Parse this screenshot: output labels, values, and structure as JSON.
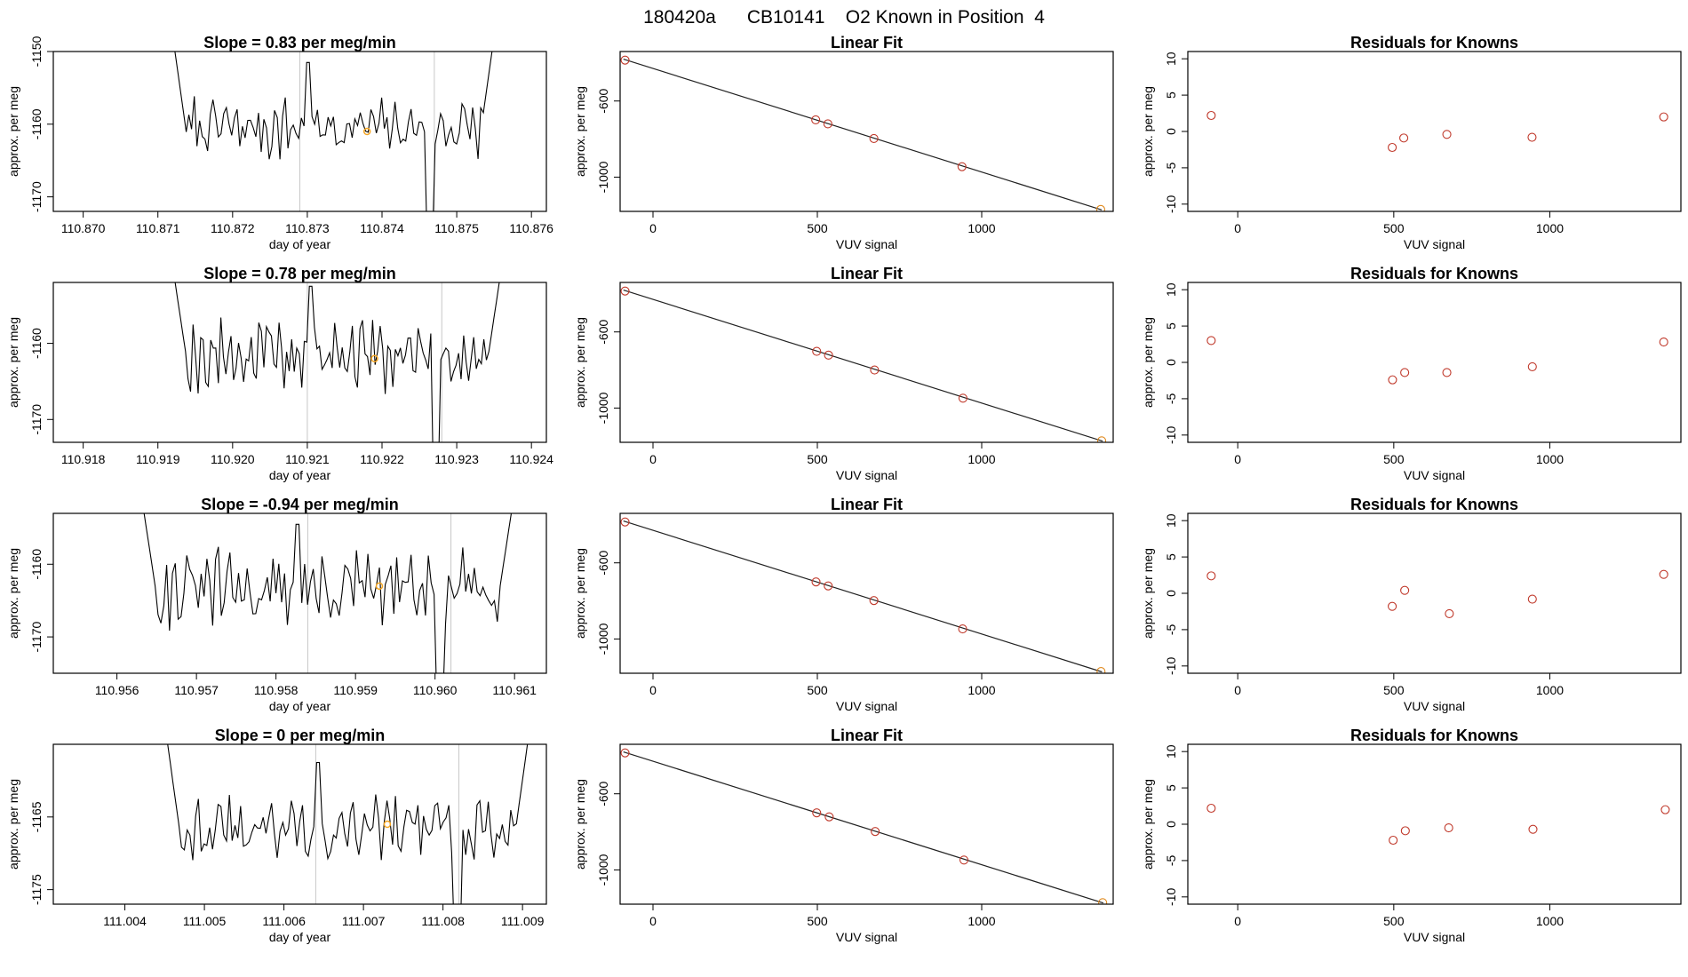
{
  "page_title": "180420a      CB10141    O2 Known in Position  4",
  "chart_data": [
    {
      "type": "line",
      "panel": "timeseries",
      "row": 0,
      "title": "Slope =  0.83  per meg/min",
      "xlabel": "day of year",
      "ylabel": "approx. per meg",
      "xlim": [
        110.8696,
        110.8762
      ],
      "ylim": [
        -1172,
        -1150
      ],
      "xticks": [
        "110.870",
        "110.871",
        "110.872",
        "110.873",
        "110.874",
        "110.875",
        "110.876"
      ],
      "yticks": [
        "-1150",
        "-1160",
        "-1170"
      ],
      "vlines": [
        110.8729,
        110.8747
      ],
      "series": [
        {
          "name": "signal",
          "color": "#000000",
          "x0": 110.8712,
          "x1": 110.8755,
          "start": -1148,
          "end": -1148,
          "base": -1160.5,
          "amp": 3.5,
          "n": 120,
          "seed": 7
        }
      ],
      "highlight": {
        "x": 110.8738,
        "y": -1161,
        "color": "#f5a623"
      }
    },
    {
      "type": "scatter",
      "panel": "fit",
      "row": 0,
      "title": "Linear Fit",
      "xlabel": "VUV signal",
      "ylabel": "approx. per meg",
      "xlim": [
        -100,
        1400
      ],
      "ylim": [
        -1180,
        -340
      ],
      "xticks": [
        "0",
        "500",
        "1000"
      ],
      "yticks": [
        "-600",
        "-1000"
      ],
      "points": [
        [
          -85,
          -385
        ],
        [
          495,
          -699
        ],
        [
          532,
          -720
        ],
        [
          672,
          -797
        ],
        [
          940,
          -945
        ],
        [
          1362,
          -1170
        ]
      ],
      "line": [
        [
          -90,
          -380
        ],
        [
          1365,
          -1172
        ]
      ]
    },
    {
      "type": "scatter",
      "panel": "residuals",
      "row": 0,
      "title": "Residuals for Knowns",
      "xlabel": "VUV signal",
      "ylabel": "approx. per meg",
      "xlim": [
        -160,
        1420
      ],
      "ylim": [
        -11,
        11
      ],
      "xticks": [
        "0",
        "500",
        "1000"
      ],
      "yticks": [
        "10",
        "5",
        "0",
        "-5",
        "-10"
      ],
      "points": [
        [
          -85,
          2.2
        ],
        [
          495,
          -2.2
        ],
        [
          532,
          -0.9
        ],
        [
          670,
          -0.4
        ],
        [
          943,
          -0.8
        ],
        [
          1365,
          2
        ]
      ]
    },
    {
      "type": "line",
      "panel": "timeseries",
      "row": 1,
      "title": "Slope =  0.78  per meg/min",
      "xlabel": "day of year",
      "ylabel": "approx. per meg",
      "xlim": [
        110.9176,
        110.9242
      ],
      "ylim": [
        -1173,
        -1152
      ],
      "xticks": [
        "110.918",
        "110.919",
        "110.920",
        "110.921",
        "110.922",
        "110.923",
        "110.924"
      ],
      "yticks": [
        "-1160",
        "-1170"
      ],
      "vlines": [
        110.921,
        110.9228
      ],
      "series": [
        {
          "name": "signal",
          "color": "#000000",
          "x0": 110.9192,
          "x1": 110.9236,
          "start": -1150,
          "end": -1150,
          "base": -1161.5,
          "amp": 3.8,
          "n": 130,
          "seed": 19
        }
      ],
      "highlight": {
        "x": 110.9219,
        "y": -1162,
        "color": "#f5a623"
      }
    },
    {
      "type": "scatter",
      "panel": "fit",
      "row": 1,
      "title": "Linear Fit",
      "xlabel": "VUV signal",
      "ylabel": "approx. per meg",
      "xlim": [
        -100,
        1400
      ],
      "ylim": [
        -1180,
        -340
      ],
      "xticks": [
        "0",
        "500",
        "1000"
      ],
      "yticks": [
        "-600",
        "-1000"
      ],
      "points": [
        [
          -85,
          -385
        ],
        [
          498,
          -702
        ],
        [
          534,
          -722
        ],
        [
          674,
          -800
        ],
        [
          943,
          -948
        ],
        [
          1365,
          -1172
        ]
      ],
      "line": [
        [
          -90,
          -380
        ],
        [
          1368,
          -1174
        ]
      ]
    },
    {
      "type": "scatter",
      "panel": "residuals",
      "row": 1,
      "title": "Residuals for Knowns",
      "xlabel": "VUV signal",
      "ylabel": "approx. per meg",
      "xlim": [
        -160,
        1420
      ],
      "ylim": [
        -11,
        11
      ],
      "xticks": [
        "0",
        "500",
        "1000"
      ],
      "yticks": [
        "10",
        "5",
        "0",
        "-5",
        "-10"
      ],
      "points": [
        [
          -85,
          3
        ],
        [
          496,
          -2.4
        ],
        [
          535,
          -1.4
        ],
        [
          670,
          -1.4
        ],
        [
          944,
          -0.6
        ],
        [
          1365,
          2.8
        ]
      ]
    },
    {
      "type": "line",
      "panel": "timeseries",
      "row": 2,
      "title": "Slope =  -0.94  per meg/min",
      "xlabel": "day of year",
      "ylabel": "approx. per meg",
      "xlim": [
        110.9552,
        110.9614
      ],
      "ylim": [
        -1175,
        -1153
      ],
      "xticks": [
        "110.956",
        "110.957",
        "110.958",
        "110.959",
        "110.960",
        "110.961"
      ],
      "yticks": [
        "-1160",
        "-1170"
      ],
      "vlines": [
        110.9584,
        110.9602
      ],
      "series": [
        {
          "name": "signal",
          "color": "#000000",
          "x0": 110.9563,
          "x1": 110.961,
          "start": -1150,
          "end": -1150,
          "base": -1163.5,
          "amp": 4.2,
          "n": 130,
          "seed": 31
        }
      ],
      "highlight": {
        "x": 110.9593,
        "y": -1163,
        "color": "#f5a623"
      }
    },
    {
      "type": "scatter",
      "panel": "fit",
      "row": 2,
      "title": "Linear Fit",
      "xlabel": "VUV signal",
      "ylabel": "approx. per meg",
      "xlim": [
        -100,
        1400
      ],
      "ylim": [
        -1180,
        -340
      ],
      "xticks": [
        "0",
        "500",
        "1000"
      ],
      "yticks": [
        "-600",
        "-1000"
      ],
      "points": [
        [
          -85,
          -385
        ],
        [
          496,
          -700
        ],
        [
          533,
          -721
        ],
        [
          672,
          -798
        ],
        [
          942,
          -947
        ],
        [
          1363,
          -1171
        ]
      ],
      "line": [
        [
          -90,
          -380
        ],
        [
          1366,
          -1173
        ]
      ]
    },
    {
      "type": "scatter",
      "panel": "residuals",
      "row": 2,
      "title": "Residuals for Knowns",
      "xlabel": "VUV signal",
      "ylabel": "approx. per meg",
      "xlim": [
        -160,
        1420
      ],
      "ylim": [
        -11,
        11
      ],
      "xticks": [
        "0",
        "500",
        "1000"
      ],
      "yticks": [
        "10",
        "5",
        "0",
        "-5",
        "-10"
      ],
      "points": [
        [
          -85,
          2.4
        ],
        [
          495,
          -1.8
        ],
        [
          535,
          0.4
        ],
        [
          678,
          -2.8
        ],
        [
          944,
          -0.8
        ],
        [
          1365,
          2.6
        ]
      ]
    },
    {
      "type": "line",
      "panel": "timeseries",
      "row": 3,
      "title": "Slope =  0  per meg/min",
      "xlabel": "day of year",
      "ylabel": "approx. per meg",
      "xlim": [
        111.0031,
        111.0093
      ],
      "ylim": [
        -1177,
        -1155
      ],
      "xticks": [
        "111.004",
        "111.005",
        "111.006",
        "111.007",
        "111.008",
        "111.009"
      ],
      "yticks": [
        "-1165",
        "-1175"
      ],
      "vlines": [
        111.0064,
        111.0082
      ],
      "series": [
        {
          "name": "signal",
          "color": "#000000",
          "x0": 111.0045,
          "x1": 111.0091,
          "start": -1152,
          "end": -1152,
          "base": -1166.5,
          "amp": 3.3,
          "n": 130,
          "seed": 43
        }
      ],
      "highlight": {
        "x": 111.0073,
        "y": -1166,
        "color": "#f5a623"
      }
    },
    {
      "type": "scatter",
      "panel": "fit",
      "row": 3,
      "title": "Linear Fit",
      "xlabel": "VUV signal",
      "ylabel": "approx. per meg",
      "xlim": [
        -100,
        1400
      ],
      "ylim": [
        -1180,
        -340
      ],
      "xticks": [
        "0",
        "500",
        "1000"
      ],
      "yticks": [
        "-600",
        "-1000"
      ],
      "points": [
        [
          -85,
          -385
        ],
        [
          498,
          -700
        ],
        [
          536,
          -721
        ],
        [
          676,
          -798
        ],
        [
          946,
          -948
        ],
        [
          1368,
          -1172
        ]
      ],
      "line": [
        [
          -90,
          -380
        ],
        [
          1370,
          -1174
        ]
      ]
    },
    {
      "type": "scatter",
      "panel": "residuals",
      "row": 3,
      "title": "Residuals for Knowns",
      "xlabel": "VUV signal",
      "ylabel": "approx. per meg",
      "xlim": [
        -160,
        1420
      ],
      "ylim": [
        -11,
        11
      ],
      "xticks": [
        "0",
        "500",
        "1000"
      ],
      "yticks": [
        "10",
        "5",
        "0",
        "-5",
        "-10"
      ],
      "points": [
        [
          -85,
          2.2
        ],
        [
          498,
          -2.2
        ],
        [
          537,
          -0.9
        ],
        [
          676,
          -0.5
        ],
        [
          946,
          -0.7
        ],
        [
          1370,
          2
        ]
      ]
    }
  ]
}
